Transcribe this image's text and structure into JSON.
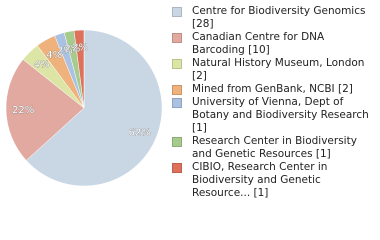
{
  "chart_data": {
    "type": "pie",
    "categories": [
      "Centre for Biodiversity Genomics [28]",
      "Canadian Centre for DNA Barcoding [10]",
      "Natural History Museum, London [2]",
      "Mined from GenBank, NCBI [2]",
      "University of Vienna, Dept of Botany and Biodiversity Research [1]",
      "Research Center in Biodiversity and Genetic Resources [1]",
      "CIBIO, Research Center in Biodiversity and Genetic Resource... [1]"
    ],
    "values": [
      62,
      22,
      4,
      4,
      2,
      2,
      2
    ],
    "value_labels": [
      "62%",
      "22%",
      "4%",
      "4%",
      "2%",
      "2%",
      "2%"
    ],
    "colors": [
      "#c9d7e5",
      "#e2a9a0",
      "#dce5a5",
      "#efb27c",
      "#a9c1e3",
      "#a7cb8d",
      "#de715c"
    ]
  }
}
